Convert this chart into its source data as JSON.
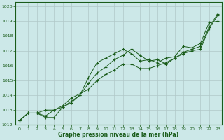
{
  "background_color": "#cce8e8",
  "grid_color": "#b0c8c8",
  "line_color": "#1a5c1a",
  "title": "Graphe pression niveau de la mer (hPa)",
  "xlim": [
    -0.5,
    23.5
  ],
  "ylim": [
    1012,
    1020.3
  ],
  "yticks": [
    1012,
    1013,
    1014,
    1015,
    1016,
    1017,
    1018,
    1019,
    1020
  ],
  "xticks": [
    0,
    1,
    2,
    3,
    4,
    5,
    6,
    7,
    8,
    9,
    10,
    11,
    12,
    13,
    14,
    15,
    16,
    17,
    18,
    19,
    20,
    21,
    22,
    23
  ],
  "series": [
    [
      1012.3,
      1012.8,
      1012.8,
      1012.5,
      1012.5,
      1013.2,
      1013.6,
      1014.0,
      1014.8,
      1015.5,
      1015.9,
      1016.4,
      1016.7,
      1017.1,
      1016.7,
      1016.3,
      1016.4,
      1016.1,
      1016.5,
      1016.9,
      1017.1,
      1017.3,
      1018.6,
      1019.5
    ],
    [
      1012.3,
      1012.8,
      1012.8,
      1013.0,
      1013.0,
      1013.2,
      1013.5,
      1014.0,
      1015.2,
      1016.2,
      1016.5,
      1016.8,
      1017.1,
      1016.8,
      1016.3,
      1016.4,
      1016.2,
      1016.5,
      1016.6,
      1017.3,
      1017.2,
      1017.5,
      1018.9,
      1019.0
    ],
    [
      1012.3,
      1012.8,
      1012.8,
      1012.6,
      1013.0,
      1013.3,
      1013.8,
      1014.1,
      1014.4,
      1015.0,
      1015.4,
      1015.7,
      1016.1,
      1016.1,
      1015.8,
      1015.8,
      1016.0,
      1016.2,
      1016.5,
      1016.8,
      1017.0,
      1017.1,
      1018.5,
      1019.4
    ]
  ]
}
